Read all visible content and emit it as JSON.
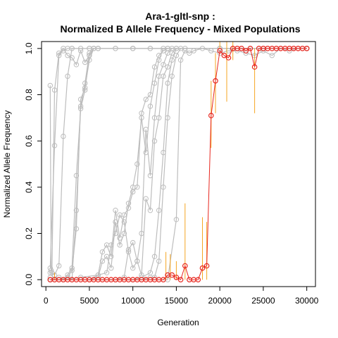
{
  "chart_data": {
    "type": "line",
    "title": "Ara-1-gltl-snp :",
    "subtitle": "Normalized B Allele Frequency - Mixed Populations",
    "xlabel": "Generation",
    "ylabel": "Normalized Allele Frequency",
    "xlim": [
      -500,
      31000
    ],
    "ylim": [
      -0.03,
      1.03
    ],
    "x_ticks": [
      0,
      5000,
      10000,
      15000,
      20000,
      25000,
      30000
    ],
    "y_ticks": [
      0.0,
      0.2,
      0.4,
      0.6,
      0.8,
      1.0
    ],
    "grid": false,
    "colors": {
      "background_series": "#bdbdbd",
      "highlight_series": "#e8271f",
      "error_bars": "#f5a623"
    },
    "background_series": [
      {
        "x": [
          500,
          600,
          700,
          1000,
          1500,
          2000,
          2500,
          3000,
          4000,
          5000,
          8000,
          12000,
          20000,
          25000,
          30000
        ],
        "y": [
          0.84,
          0.04,
          0.03,
          0.82,
          0.98,
          0.99,
          1.0,
          1.0,
          1.0,
          1.0,
          1.0,
          1.0,
          1.0,
          1.0,
          1.0
        ]
      },
      {
        "x": [
          500,
          1000,
          1500,
          2000,
          2500,
          3000,
          3500,
          4000,
          4500,
          5000,
          5500,
          6000,
          8000,
          12000,
          30000
        ],
        "y": [
          0.05,
          0.58,
          0.97,
          1.0,
          0.97,
          0.96,
          0.93,
          0.99,
          0.94,
          0.97,
          1.0,
          1.0,
          1.0,
          1.0,
          1.0
        ]
      },
      {
        "x": [
          500,
          1000,
          1500,
          2000,
          2500,
          3000,
          5000,
          10000,
          20000,
          30000
        ],
        "y": [
          0.03,
          0.02,
          0.06,
          0.62,
          0.88,
          1.0,
          1.0,
          1.0,
          1.0,
          1.0
        ]
      },
      {
        "x": [
          500,
          1000,
          1500,
          2000,
          2500,
          3000,
          3500,
          4000,
          4500,
          5000,
          5500,
          6000,
          10000,
          20000,
          30000
        ],
        "y": [
          0.01,
          0.0,
          0.01,
          0.0,
          0.02,
          0.05,
          0.45,
          0.74,
          0.82,
          0.97,
          1.0,
          1.0,
          1.0,
          1.0,
          1.0
        ]
      },
      {
        "x": [
          500,
          1500,
          2500,
          3000,
          3500,
          4000,
          4500,
          5000,
          5500,
          6000,
          10000,
          20000,
          30000
        ],
        "y": [
          0.0,
          0.0,
          0.01,
          0.0,
          0.3,
          0.75,
          0.85,
          0.98,
          1.0,
          1.0,
          1.0,
          1.0,
          1.0
        ]
      },
      {
        "x": [
          2000,
          2500,
          3000,
          3500,
          4000,
          4500,
          5000,
          5500,
          6000,
          10000,
          20000,
          30000
        ],
        "y": [
          0.0,
          0.01,
          0.04,
          0.22,
          0.78,
          0.83,
          0.95,
          1.0,
          1.0,
          1.0,
          1.0,
          1.0
        ]
      },
      {
        "x": [
          500,
          2000,
          4000,
          6000,
          6500,
          7000,
          7500,
          8000,
          8500,
          9000,
          9500,
          10000,
          10500,
          11000,
          11500,
          12000,
          12500,
          13000,
          13500,
          14000,
          20000,
          30000
        ],
        "y": [
          0.0,
          0.0,
          0.01,
          0.02,
          0.12,
          0.15,
          0.1,
          0.3,
          0.18,
          0.28,
          0.31,
          0.38,
          0.4,
          0.72,
          0.78,
          0.8,
          0.92,
          0.97,
          0.99,
          1.0,
          1.0,
          1.0
        ]
      },
      {
        "x": [
          500,
          5000,
          6000,
          6500,
          7000,
          7500,
          8000,
          8500,
          9000,
          9500,
          10000,
          10500,
          11000,
          11500,
          12000,
          12500,
          13000,
          13500,
          14000,
          20000,
          30000
        ],
        "y": [
          0.0,
          0.0,
          0.01,
          0.08,
          0.1,
          0.05,
          0.25,
          0.15,
          0.2,
          0.33,
          0.4,
          0.5,
          0.7,
          0.55,
          0.75,
          0.85,
          0.95,
          1.0,
          1.0,
          1.0,
          1.0
        ]
      },
      {
        "x": [
          500,
          5000,
          6000,
          7000,
          7500,
          8000,
          8500,
          9000,
          9500,
          10000,
          10500,
          11000,
          11500,
          12000,
          12500,
          13000,
          13500,
          14000,
          14500,
          20000,
          30000
        ],
        "y": [
          0.0,
          0.0,
          0.02,
          0.03,
          0.15,
          0.2,
          0.28,
          0.25,
          0.12,
          0.05,
          0.08,
          0.2,
          0.65,
          0.45,
          0.7,
          0.88,
          0.93,
          0.98,
          1.0,
          1.0,
          1.0
        ]
      },
      {
        "x": [
          500,
          8000,
          9000,
          9500,
          10000,
          10500,
          11000,
          11500,
          12000,
          12500,
          13000,
          13500,
          14000,
          14500,
          15000,
          20000,
          30000
        ],
        "y": [
          0.0,
          0.0,
          0.01,
          0.13,
          0.16,
          0.08,
          0.02,
          0.35,
          0.3,
          0.6,
          0.7,
          0.88,
          0.92,
          0.98,
          1.0,
          1.0,
          1.0
        ]
      },
      {
        "x": [
          500,
          10000,
          11000,
          12000,
          12500,
          13000,
          13500,
          14000,
          14500,
          15000,
          20000,
          30000
        ],
        "y": [
          0.0,
          0.0,
          0.01,
          0.03,
          0.1,
          0.3,
          0.55,
          0.85,
          0.95,
          1.0,
          1.0,
          1.0
        ]
      },
      {
        "x": [
          500,
          11000,
          12000,
          12500,
          13000,
          13500,
          14000,
          14500,
          15000,
          15500,
          16000,
          20000,
          30000
        ],
        "y": [
          0.0,
          0.0,
          0.01,
          0.01,
          0.08,
          0.4,
          0.7,
          0.88,
          0.97,
          1.0,
          1.0,
          1.0,
          1.0
        ]
      },
      {
        "x": [
          500,
          14000,
          15000,
          15500,
          16000,
          16500,
          17000,
          18000,
          19000,
          20000,
          21000,
          22000,
          23000,
          24000,
          25000,
          26000,
          27000,
          28000,
          29000,
          30000
        ],
        "y": [
          0.0,
          0.0,
          0.26,
          0.95,
          0.99,
          0.98,
          0.99,
          1.0,
          0.99,
          0.98,
          0.99,
          0.99,
          0.98,
          0.97,
          0.99,
          0.97,
          1.0,
          0.99,
          1.0,
          1.0
        ]
      }
    ],
    "highlight_series": {
      "x": [
        500,
        1000,
        1500,
        2000,
        2500,
        3000,
        3500,
        4000,
        4500,
        5000,
        5500,
        6000,
        6500,
        7000,
        7500,
        8000,
        8500,
        9000,
        9500,
        10000,
        10500,
        11000,
        11500,
        12000,
        12500,
        13000,
        13500,
        14000,
        14500,
        15000,
        15500,
        16000,
        16500,
        17000,
        17500,
        18000,
        18500,
        19000,
        19500,
        20000,
        20500,
        21000,
        21500,
        22000,
        22500,
        23000,
        23500,
        24000,
        24500,
        25000,
        25500,
        26000,
        26500,
        27000,
        27500,
        28000,
        28500,
        29000,
        29500,
        30000
      ],
      "y": [
        0.0,
        0.0,
        0.0,
        0.0,
        0.0,
        0.0,
        0.0,
        0.0,
        0.0,
        0.0,
        0.0,
        0.0,
        0.0,
        0.0,
        0.0,
        0.0,
        0.0,
        0.0,
        0.0,
        0.0,
        0.0,
        0.0,
        0.0,
        0.0,
        0.0,
        0.0,
        0.0,
        0.02,
        0.02,
        0.01,
        0.0,
        0.06,
        0.0,
        0.0,
        0.0,
        0.05,
        0.06,
        0.71,
        0.86,
        0.99,
        0.97,
        0.96,
        1.0,
        1.0,
        1.0,
        0.99,
        1.0,
        0.92,
        1.0,
        1.0,
        1.0,
        1.0,
        1.0,
        1.0,
        1.0,
        1.0,
        1.0,
        1.0,
        1.0,
        1.0
      ]
    },
    "error_bars": [
      {
        "x": 1000,
        "low": 0.0,
        "high": 0.03
      },
      {
        "x": 13800,
        "low": 0.0,
        "high": 0.12
      },
      {
        "x": 14300,
        "low": 0.0,
        "high": 0.11
      },
      {
        "x": 15000,
        "low": 0.0,
        "high": 0.08
      },
      {
        "x": 16000,
        "low": 0.0,
        "high": 0.33
      },
      {
        "x": 18000,
        "low": 0.0,
        "high": 0.27
      },
      {
        "x": 18500,
        "low": 0.0,
        "high": 0.25
      },
      {
        "x": 19000,
        "low": 0.57,
        "high": 0.86
      },
      {
        "x": 19500,
        "low": 0.72,
        "high": 0.98
      },
      {
        "x": 20000,
        "low": 1.0,
        "high": 1.03
      },
      {
        "x": 20800,
        "low": 0.77,
        "high": 1.03
      },
      {
        "x": 21500,
        "low": 0.95,
        "high": 1.03
      },
      {
        "x": 24000,
        "low": 0.72,
        "high": 1.0
      }
    ]
  }
}
